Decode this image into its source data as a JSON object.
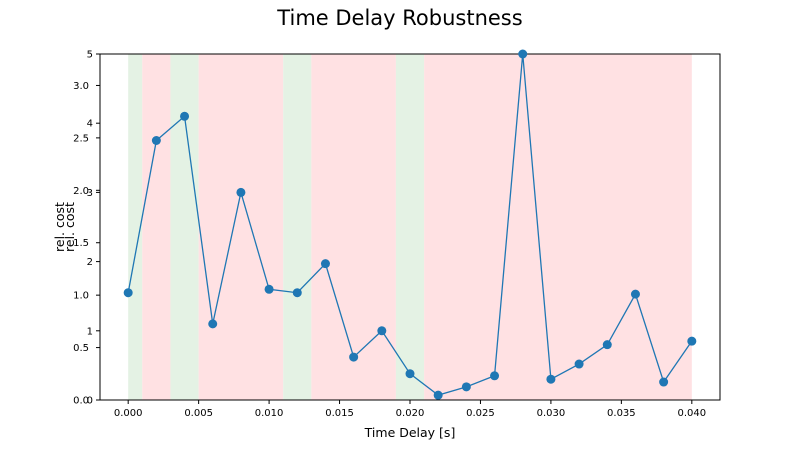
{
  "chart_data": {
    "type": "line",
    "title": "Time Delay Robustness",
    "xlabel": "Time Delay [s]",
    "ylabel": "rel. cost",
    "ylabel_overlay": "rel. cost",
    "xlim": [
      -0.002,
      0.042
    ],
    "x_ticks": [
      0.0,
      0.005,
      0.01,
      0.015,
      0.02,
      0.025,
      0.03,
      0.035,
      0.04
    ],
    "x_tick_labels": [
      "0.000",
      "0.005",
      "0.010",
      "0.015",
      "0.020",
      "0.025",
      "0.030",
      "0.035",
      "0.040"
    ],
    "ylim": [
      0,
      5
    ],
    "y_ticks": [
      0,
      1,
      2,
      3,
      4,
      5
    ],
    "y_tick_labels": [
      "0",
      "1",
      "2",
      "3",
      "4",
      "5"
    ],
    "y2lim": [
      0,
      3.3
    ],
    "y2_ticks": [
      0.0,
      0.5,
      1.0,
      1.5,
      2.0,
      2.5,
      3.0
    ],
    "y2_tick_labels": [
      "0.0",
      "0.5",
      "1.0",
      "1.5",
      "2.0",
      "2.5",
      "3.0"
    ],
    "grid": false,
    "series": [
      {
        "color": "#1f77b4",
        "x": [
          0.0,
          0.002,
          0.004,
          0.006,
          0.008,
          0.01,
          0.012,
          0.014,
          0.016,
          0.018,
          0.02,
          0.022,
          0.024,
          0.026,
          0.028,
          0.03,
          0.032,
          0.034,
          0.036,
          0.038,
          0.04
        ],
        "y": [
          1.55,
          3.75,
          4.1,
          1.1,
          3.0,
          1.6,
          1.55,
          1.97,
          0.62,
          1.0,
          0.38,
          0.07,
          0.19,
          0.35,
          5.0,
          0.3,
          0.52,
          0.8,
          1.53,
          0.26,
          0.85
        ]
      }
    ],
    "background_bands": [
      {
        "x0": 0.0,
        "x1": 0.001,
        "status": "green"
      },
      {
        "x0": 0.001,
        "x1": 0.003,
        "status": "red"
      },
      {
        "x0": 0.003,
        "x1": 0.005,
        "status": "green"
      },
      {
        "x0": 0.005,
        "x1": 0.011,
        "status": "red"
      },
      {
        "x0": 0.011,
        "x1": 0.013,
        "status": "green"
      },
      {
        "x0": 0.013,
        "x1": 0.019,
        "status": "red"
      },
      {
        "x0": 0.019,
        "x1": 0.021,
        "status": "green"
      },
      {
        "x0": 0.021,
        "x1": 0.04,
        "status": "red"
      }
    ],
    "colors": {
      "line": "#1f77b4",
      "green_band": "#e4f2e4",
      "red_band": "#ffe1e3"
    }
  }
}
